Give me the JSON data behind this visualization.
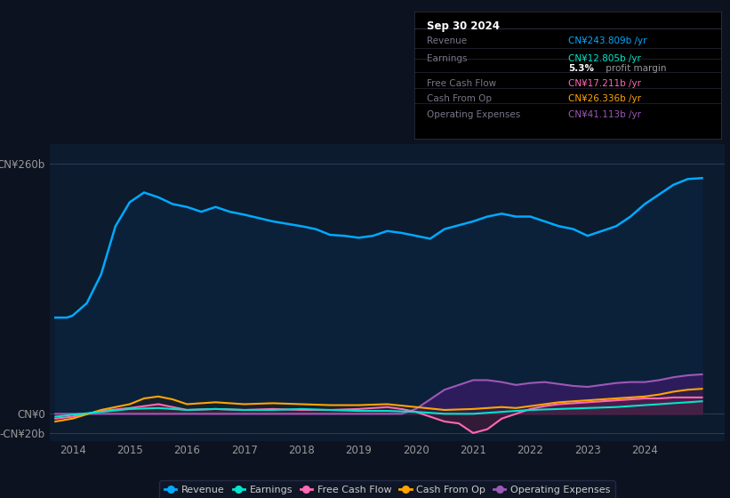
{
  "bg_color": "#0c1220",
  "plot_bg_color": "#0d1b2e",
  "upper_bg_color": "#0c1220",
  "title_box": {
    "date": "Sep 30 2024",
    "rows": [
      {
        "label": "Revenue",
        "value": "CN¥243.809b /yr",
        "value_color": "#00aaff",
        "margin": null
      },
      {
        "label": "Earnings",
        "value": "CN¥12.805b /yr",
        "value_color": "#00e5cc",
        "margin": "5.3% profit margin"
      },
      {
        "label": "Free Cash Flow",
        "value": "CN¥17.211b /yr",
        "value_color": "#ff69b4",
        "margin": null
      },
      {
        "label": "Cash From Op",
        "value": "CN¥26.336b /yr",
        "value_color": "#ffa500",
        "margin": null
      },
      {
        "label": "Operating Expenses",
        "value": "CN¥41.113b /yr",
        "value_color": "#9b59b6",
        "margin": null
      }
    ]
  },
  "ytick_labels": [
    "CN¥260b",
    "CN¥0",
    "-CN¥20b"
  ],
  "ytick_values": [
    260,
    0,
    -20
  ],
  "ylim": [
    -28,
    280
  ],
  "xlim": [
    2013.6,
    2025.4
  ],
  "xticks": [
    2014,
    2015,
    2016,
    2017,
    2018,
    2019,
    2020,
    2021,
    2022,
    2023,
    2024
  ],
  "legend": [
    {
      "label": "Revenue",
      "color": "#00aaff"
    },
    {
      "label": "Earnings",
      "color": "#00e5cc"
    },
    {
      "label": "Free Cash Flow",
      "color": "#ff69b4"
    },
    {
      "label": "Cash From Op",
      "color": "#ffa500"
    },
    {
      "label": "Operating Expenses",
      "color": "#9b59b6"
    }
  ],
  "revenue": {
    "x": [
      2013.7,
      2013.9,
      2014.0,
      2014.25,
      2014.5,
      2014.75,
      2015.0,
      2015.25,
      2015.5,
      2015.75,
      2016.0,
      2016.25,
      2016.5,
      2016.75,
      2017.0,
      2017.5,
      2018.0,
      2018.25,
      2018.5,
      2018.75,
      2019.0,
      2019.25,
      2019.5,
      2019.75,
      2020.0,
      2020.25,
      2020.5,
      2020.75,
      2021.0,
      2021.25,
      2021.5,
      2021.75,
      2022.0,
      2022.25,
      2022.5,
      2022.75,
      2023.0,
      2023.25,
      2023.5,
      2023.75,
      2024.0,
      2024.25,
      2024.5,
      2024.75,
      2025.0
    ],
    "y": [
      100,
      100,
      102,
      115,
      145,
      195,
      220,
      230,
      225,
      218,
      215,
      210,
      215,
      210,
      207,
      200,
      195,
      192,
      186,
      185,
      183,
      185,
      190,
      188,
      185,
      182,
      192,
      196,
      200,
      205,
      208,
      205,
      205,
      200,
      195,
      192,
      185,
      190,
      195,
      205,
      218,
      228,
      238,
      244,
      245
    ]
  },
  "earnings": {
    "x": [
      2013.7,
      2014.0,
      2014.5,
      2015.0,
      2015.5,
      2016.0,
      2016.5,
      2017.0,
      2017.5,
      2018.0,
      2018.5,
      2019.0,
      2019.5,
      2020.0,
      2020.25,
      2020.5,
      2020.75,
      2021.0,
      2021.25,
      2021.5,
      2021.75,
      2022.0,
      2022.5,
      2023.0,
      2023.5,
      2024.0,
      2024.5,
      2025.0
    ],
    "y": [
      -3,
      -1,
      2,
      5,
      6,
      4,
      5,
      4,
      4,
      5,
      4,
      3,
      3,
      2,
      1,
      0,
      0,
      0,
      1,
      2,
      3,
      4,
      5,
      6,
      7,
      9,
      11,
      13
    ]
  },
  "free_cash_flow": {
    "x": [
      2013.7,
      2014.0,
      2014.5,
      2015.0,
      2015.25,
      2015.5,
      2015.75,
      2016.0,
      2016.5,
      2017.0,
      2017.5,
      2018.0,
      2018.5,
      2019.0,
      2019.25,
      2019.5,
      2019.75,
      2020.0,
      2020.25,
      2020.5,
      2020.75,
      2021.0,
      2021.25,
      2021.5,
      2021.75,
      2022.0,
      2022.25,
      2022.5,
      2022.75,
      2023.0,
      2023.25,
      2023.5,
      2023.75,
      2024.0,
      2024.25,
      2024.5,
      2024.75,
      2025.0
    ],
    "y": [
      -5,
      -3,
      3,
      6,
      8,
      10,
      7,
      4,
      5,
      4,
      5,
      4,
      4,
      5,
      6,
      7,
      5,
      2,
      -3,
      -8,
      -10,
      -20,
      -16,
      -5,
      0,
      5,
      8,
      10,
      11,
      12,
      13,
      14,
      15,
      16,
      16,
      17,
      17,
      17
    ]
  },
  "cash_from_op": {
    "x": [
      2013.7,
      2014.0,
      2014.5,
      2015.0,
      2015.25,
      2015.5,
      2015.75,
      2016.0,
      2016.5,
      2017.0,
      2017.5,
      2018.0,
      2018.5,
      2019.0,
      2019.5,
      2020.0,
      2020.5,
      2021.0,
      2021.25,
      2021.5,
      2021.75,
      2022.0,
      2022.25,
      2022.5,
      2022.75,
      2023.0,
      2023.25,
      2023.5,
      2023.75,
      2024.0,
      2024.25,
      2024.5,
      2024.75,
      2025.0
    ],
    "y": [
      -8,
      -5,
      4,
      10,
      16,
      18,
      15,
      10,
      12,
      10,
      11,
      10,
      9,
      9,
      10,
      7,
      4,
      5,
      6,
      7,
      6,
      8,
      10,
      12,
      13,
      14,
      15,
      16,
      17,
      18,
      20,
      23,
      25,
      26
    ]
  },
  "operating_expenses": {
    "x": [
      2013.7,
      2014.0,
      2015.0,
      2016.0,
      2017.0,
      2018.0,
      2019.0,
      2019.5,
      2019.75,
      2020.0,
      2020.25,
      2020.5,
      2020.75,
      2021.0,
      2021.25,
      2021.5,
      2021.75,
      2022.0,
      2022.25,
      2022.5,
      2022.75,
      2023.0,
      2023.25,
      2023.5,
      2023.75,
      2024.0,
      2024.25,
      2024.5,
      2024.75,
      2025.0
    ],
    "y": [
      0,
      0,
      0,
      0,
      0,
      0,
      0,
      0,
      0,
      5,
      15,
      25,
      30,
      35,
      35,
      33,
      30,
      32,
      33,
      31,
      29,
      28,
      30,
      32,
      33,
      33,
      35,
      38,
      40,
      41
    ]
  }
}
